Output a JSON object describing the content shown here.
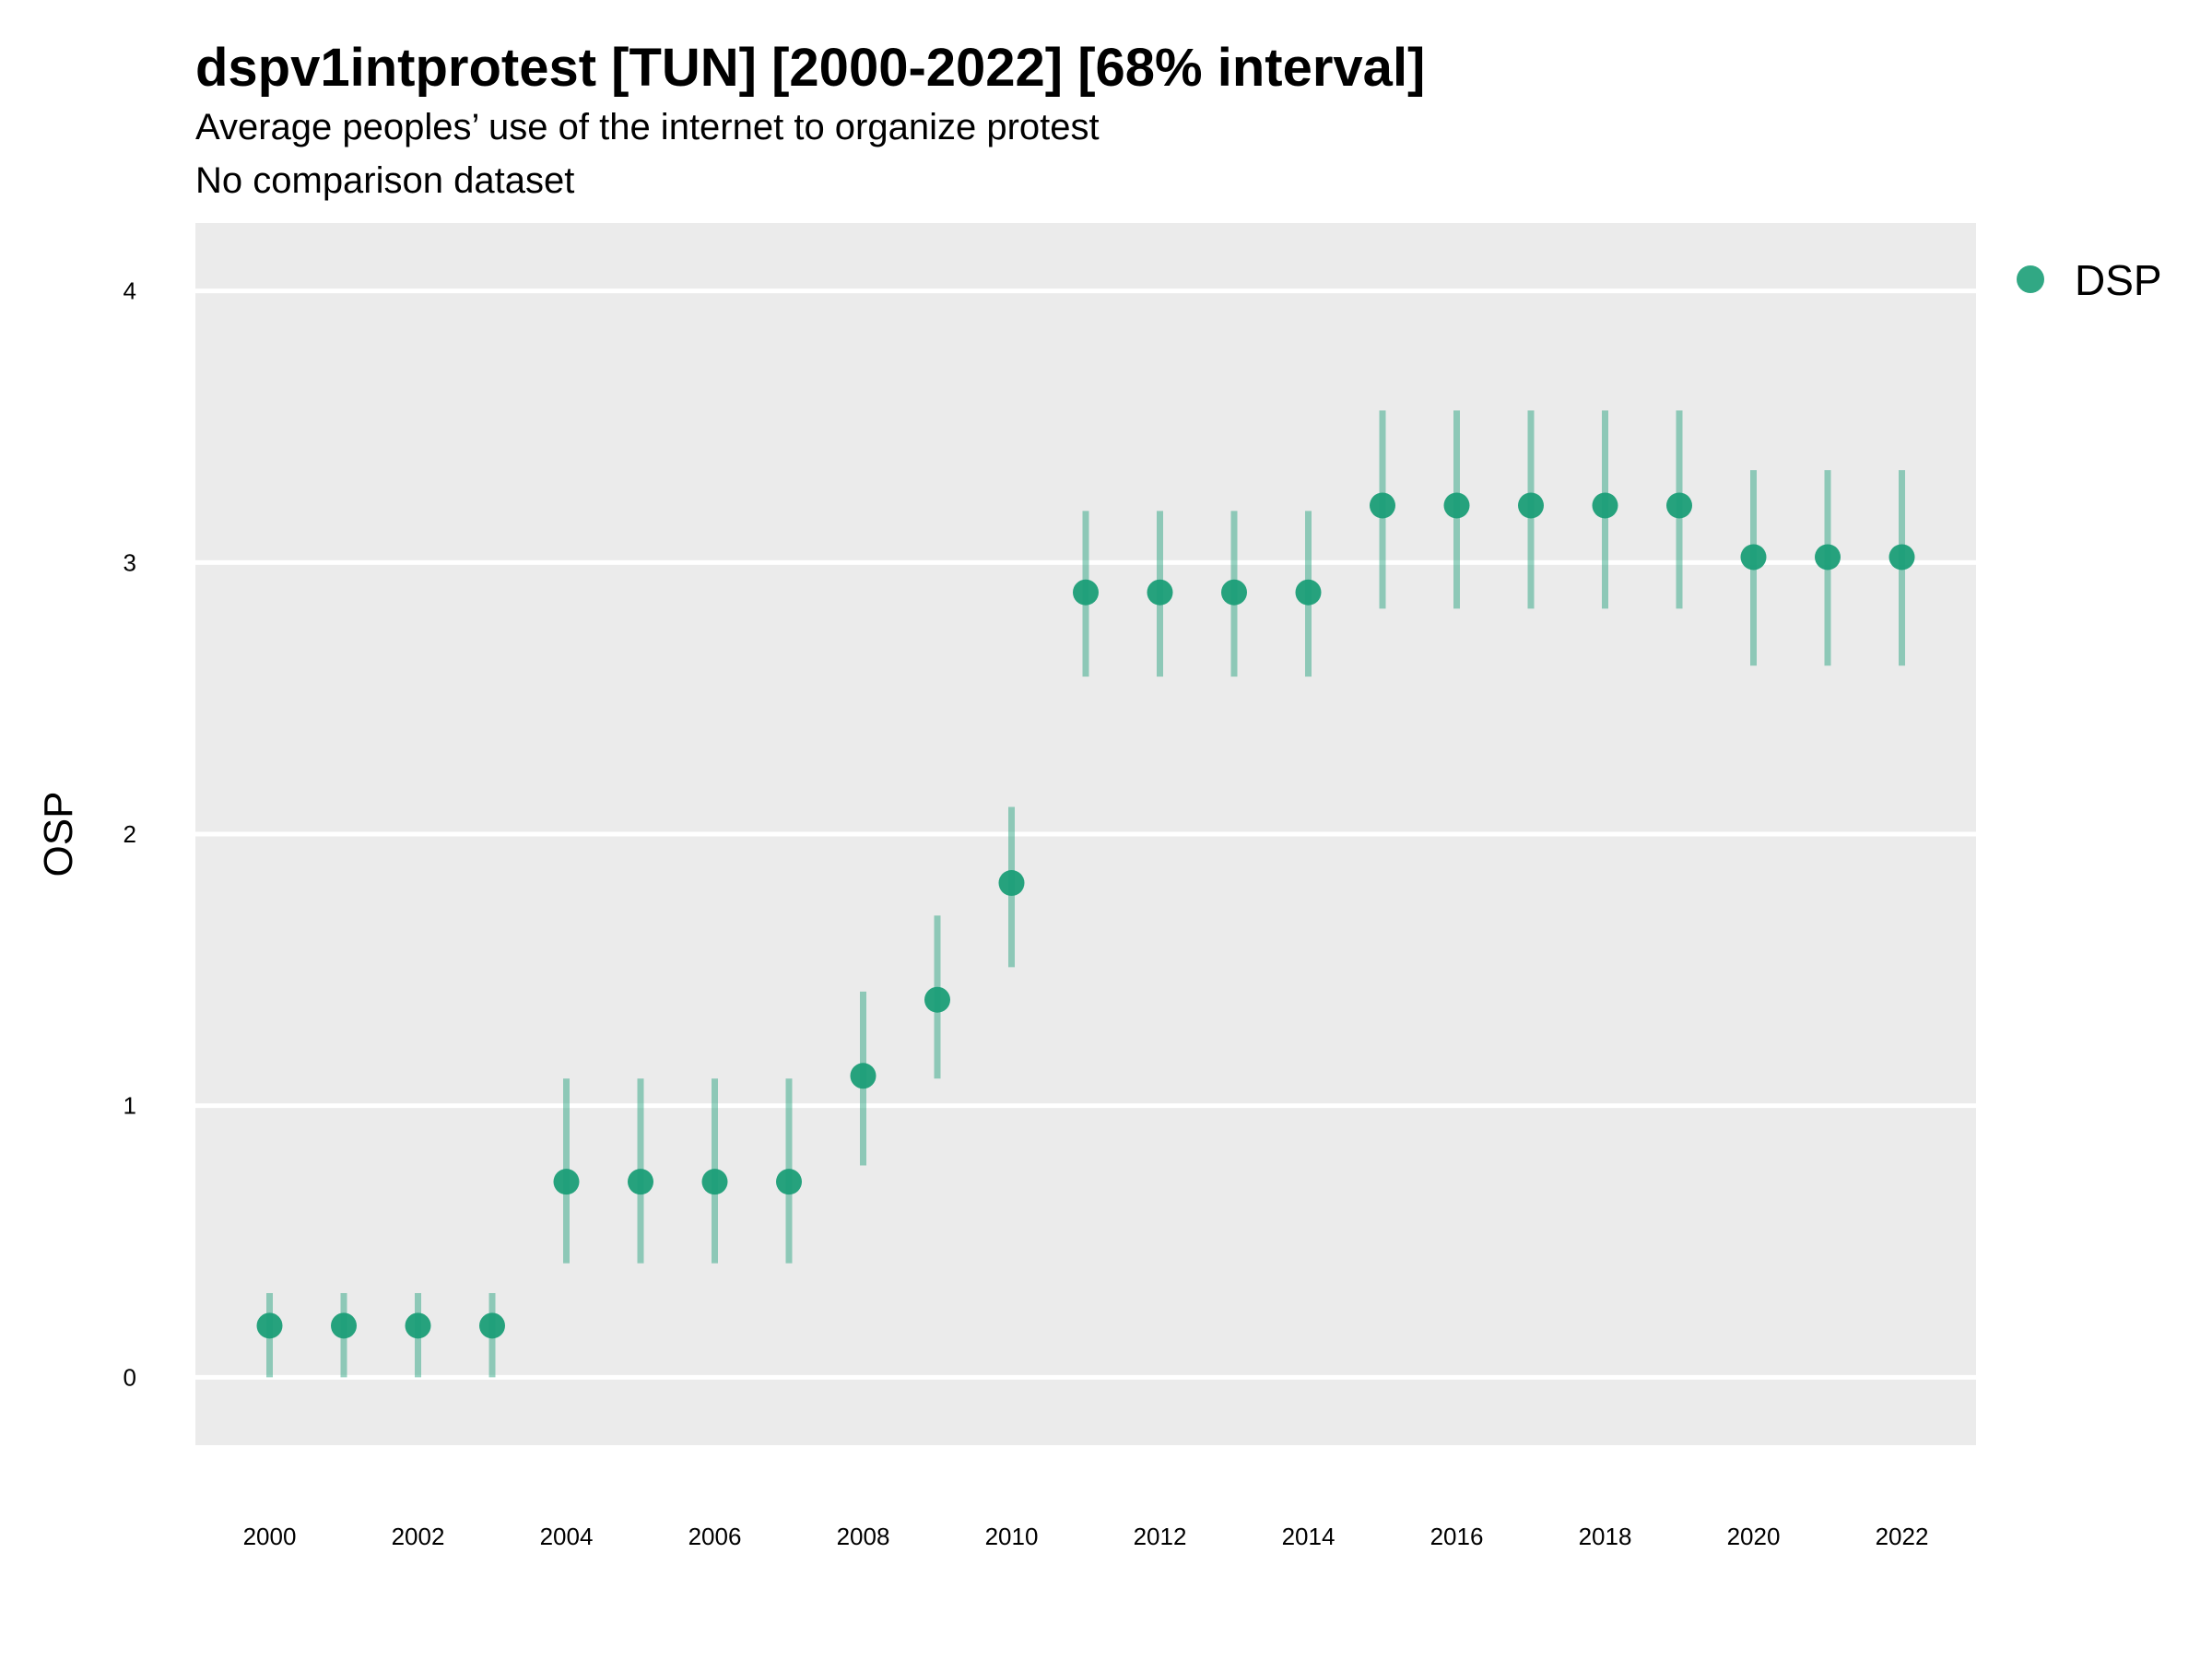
{
  "chart_data": {
    "type": "scatter",
    "title": "dspv1intprotest [TUN] [2000-2022] [68% interval]",
    "subtitle": "Average peoples’ use of the internet to organize protest",
    "subtitle2": "No comparison dataset",
    "xlabel": "",
    "ylabel": "OSP",
    "xlim": [
      1999,
      2023
    ],
    "ylim": [
      -0.25,
      4.25
    ],
    "x_ticks": [
      2000,
      2002,
      2004,
      2006,
      2008,
      2010,
      2012,
      2014,
      2016,
      2018,
      2020,
      2022
    ],
    "y_ticks": [
      0,
      1,
      2,
      3,
      4
    ],
    "grid": true,
    "legend_position": "top-right",
    "series": [
      {
        "name": "DSP",
        "color": "#1b9e77",
        "x": [
          2000,
          2001,
          2002,
          2003,
          2004,
          2005,
          2006,
          2007,
          2008,
          2009,
          2010,
          2011,
          2012,
          2013,
          2014,
          2015,
          2016,
          2017,
          2018,
          2019,
          2020,
          2021,
          2022
        ],
        "y": [
          0.19,
          0.19,
          0.19,
          0.19,
          0.72,
          0.72,
          0.72,
          0.72,
          1.11,
          1.39,
          1.82,
          2.89,
          2.89,
          2.89,
          2.89,
          3.21,
          3.21,
          3.21,
          3.21,
          3.21,
          3.02,
          3.02,
          3.02
        ],
        "lower": [
          0.0,
          0.0,
          0.0,
          0.0,
          0.42,
          0.42,
          0.42,
          0.42,
          0.78,
          1.1,
          1.51,
          2.58,
          2.58,
          2.58,
          2.58,
          2.83,
          2.83,
          2.83,
          2.83,
          2.83,
          2.62,
          2.62,
          2.62
        ],
        "upper": [
          0.31,
          0.31,
          0.31,
          0.31,
          1.1,
          1.1,
          1.1,
          1.1,
          1.42,
          1.7,
          2.1,
          3.19,
          3.19,
          3.19,
          3.19,
          3.56,
          3.56,
          3.56,
          3.56,
          3.56,
          3.34,
          3.34,
          3.34
        ]
      }
    ]
  }
}
